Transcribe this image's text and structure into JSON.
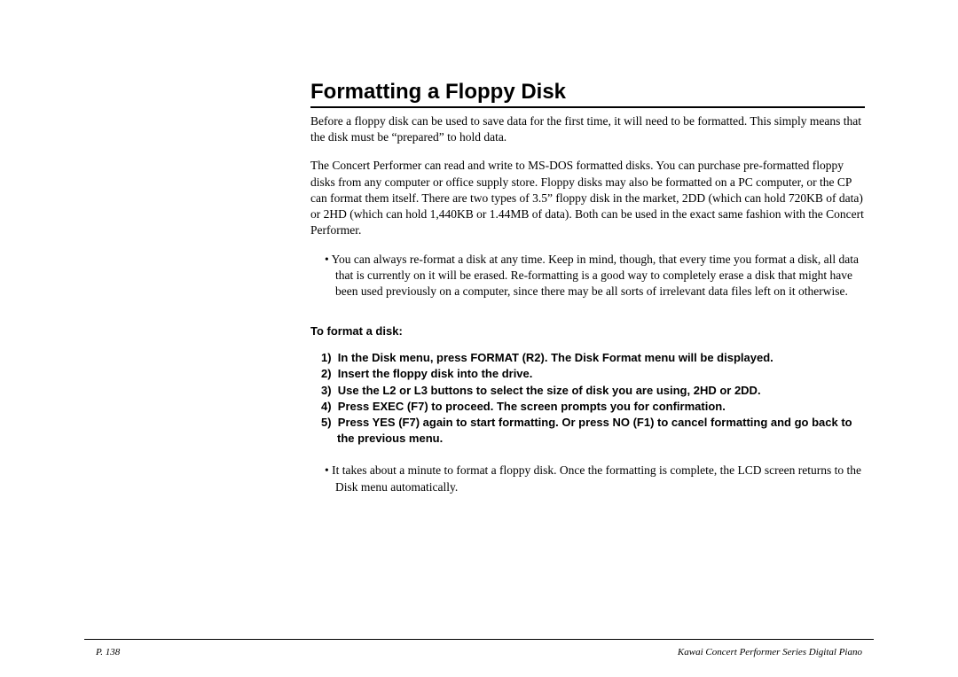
{
  "title": "Formatting a Floppy Disk",
  "para1": "Before a floppy disk can be used to save data for the first time, it will need to be formatted.  This simply means that the disk must be “prepared” to hold data.",
  "para2": "The Concert Performer can read and write to MS-DOS formatted disks.  You can purchase pre-formatted floppy disks from any computer or office supply store.  Floppy disks may also be formatted on a PC computer, or the CP can format them itself.  There are two types of 3.5” floppy disk in the market, 2DD (which can hold 720KB of data) or 2HD (which can hold 1,440KB or 1.44MB of data).  Both can be used in the exact same fashion with the Concert Performer.",
  "bullet1": "You can always re-format a disk at any time.  Keep in mind, though, that every time you format a disk, all data that is currently on it will be erased.  Re-formatting is a good way to completely erase a disk that might have been used previously on a computer, since there may be all sorts of irrelevant data files left on it otherwise.",
  "subheading": "To format a disk:",
  "steps": [
    "In the Disk menu, press FORMAT (R2).  The Disk Format menu will be displayed.",
    "Insert the floppy disk into the drive.",
    "Use the L2 or L3 buttons to select the size of disk you are using, 2HD or 2DD.",
    "Press EXEC (F7) to proceed.  The screen prompts you for confirmation.",
    "Press YES (F7) again to start formatting.  Or press NO (F1) to cancel formatting and go back to the previous menu."
  ],
  "bullet2": "It takes about a minute to format a floppy disk.  Once the formatting is complete, the LCD screen returns to the Disk menu automatically.",
  "pageNum": "P. 138",
  "footerRight": "Kawai Concert Performer Series Digital Piano"
}
